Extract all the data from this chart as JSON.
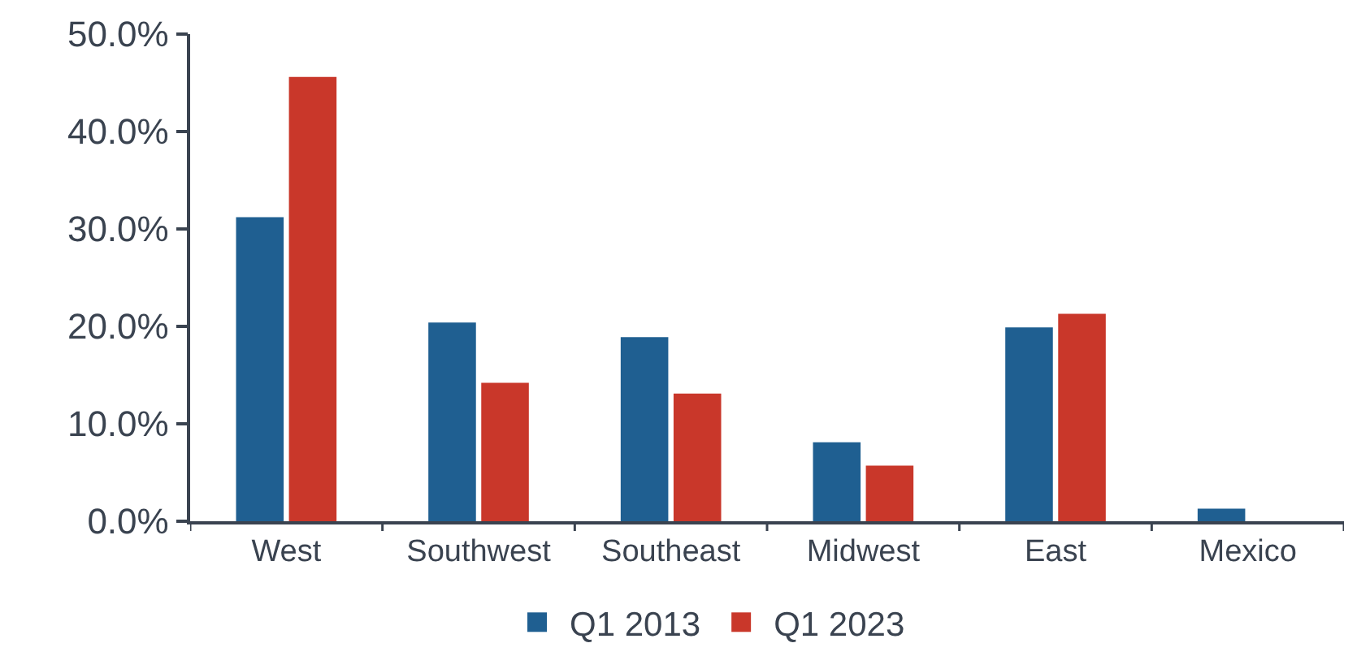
{
  "chart_data": {
    "type": "bar",
    "categories": [
      "West",
      "Southwest",
      "Southeast",
      "Midwest",
      "East",
      "Mexico"
    ],
    "series": [
      {
        "name": "Q1 2013",
        "color": "#1f5f91",
        "values": [
          31.2,
          20.4,
          18.9,
          8.1,
          19.9,
          1.3
        ]
      },
      {
        "name": "Q1 2023",
        "color": "#c9372a",
        "values": [
          45.6,
          14.2,
          13.1,
          5.7,
          21.3,
          null
        ]
      }
    ],
    "ylim": [
      0,
      50
    ],
    "yticks": [
      {
        "value": 0,
        "label": "0.0%"
      },
      {
        "value": 10,
        "label": "10.0%"
      },
      {
        "value": 20,
        "label": "20.0%"
      },
      {
        "value": 30,
        "label": "30.0%"
      },
      {
        "value": 40,
        "label": "40.0%"
      },
      {
        "value": 50,
        "label": "50.0%"
      }
    ],
    "legend": "bottom"
  }
}
